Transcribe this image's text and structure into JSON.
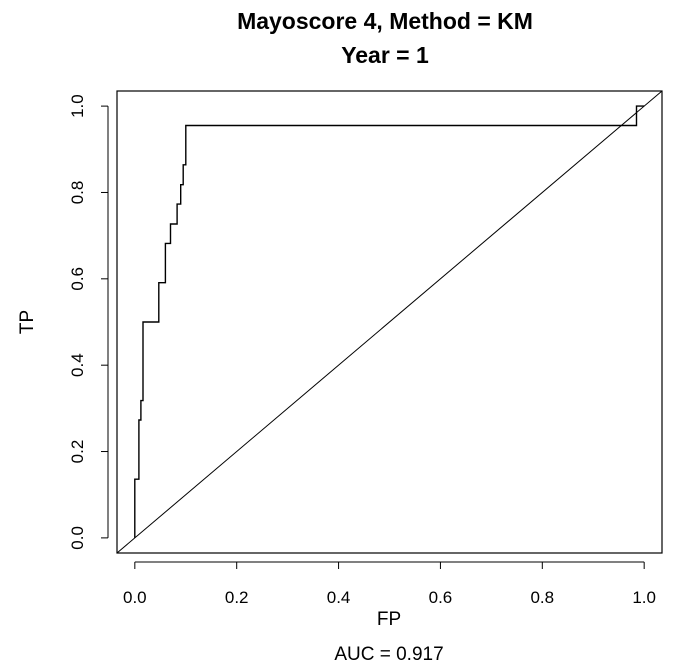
{
  "chart_data": {
    "type": "line",
    "title": "Mayoscore 4, Method = KM",
    "subtitle": "Year = 1",
    "xlabel": "FP",
    "ylabel": "TP",
    "footer": "AUC =  0.917",
    "xlim": [
      -0.035,
      1.035
    ],
    "ylim": [
      -0.035,
      1.035
    ],
    "x_ticks": [
      "0.0",
      "0.2",
      "0.4",
      "0.6",
      "0.8",
      "1.0"
    ],
    "y_ticks": [
      "0.0",
      "0.2",
      "0.4",
      "0.6",
      "0.8",
      "1.0"
    ],
    "grid": false,
    "series": [
      {
        "points": [
          [
            0.0,
            0.0
          ],
          [
            0.0,
            0.136
          ],
          [
            0.008,
            0.136
          ],
          [
            0.008,
            0.273
          ],
          [
            0.012,
            0.273
          ],
          [
            0.012,
            0.318
          ],
          [
            0.016,
            0.318
          ],
          [
            0.016,
            0.5
          ],
          [
            0.047,
            0.5
          ],
          [
            0.047,
            0.591
          ],
          [
            0.06,
            0.591
          ],
          [
            0.06,
            0.682
          ],
          [
            0.07,
            0.682
          ],
          [
            0.07,
            0.727
          ],
          [
            0.083,
            0.727
          ],
          [
            0.083,
            0.773
          ],
          [
            0.09,
            0.773
          ],
          [
            0.09,
            0.818
          ],
          [
            0.095,
            0.818
          ],
          [
            0.095,
            0.864
          ],
          [
            0.1,
            0.864
          ],
          [
            0.1,
            0.955
          ],
          [
            0.985,
            0.955
          ],
          [
            0.985,
            1.0
          ],
          [
            1.0,
            1.0
          ]
        ]
      }
    ],
    "reference_line": [
      [
        -0.035,
        -0.035
      ],
      [
        1.035,
        1.035
      ]
    ]
  }
}
